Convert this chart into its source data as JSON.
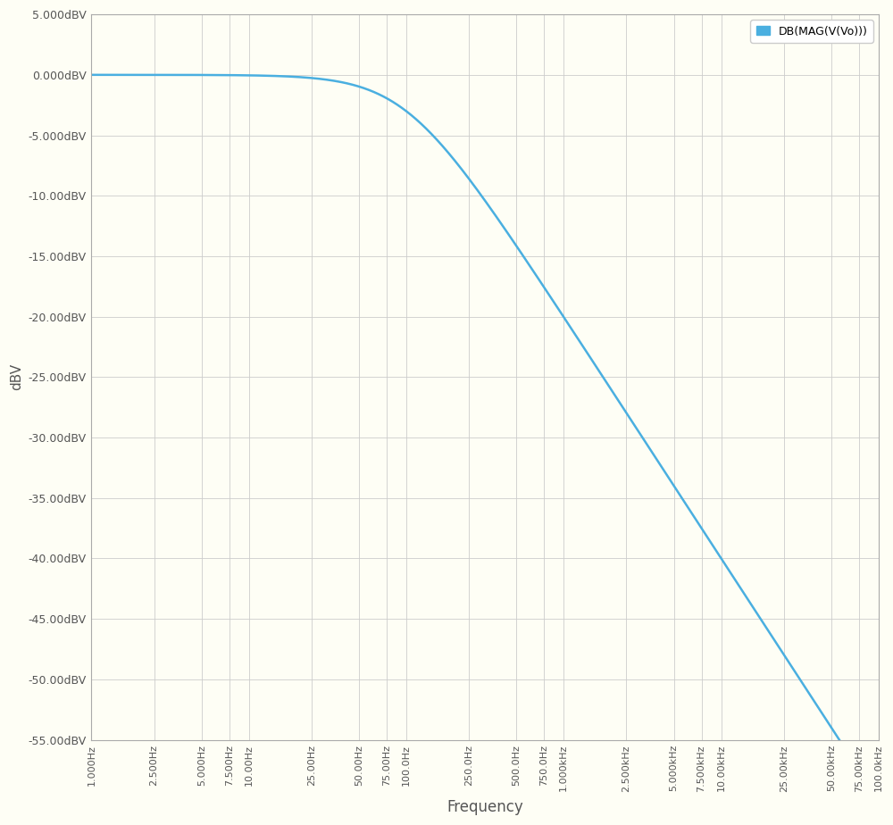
{
  "title": "",
  "xlabel": "Frequency",
  "ylabel": "dBV",
  "line_color": "#4AAFE0",
  "legend_label": "DB(MAG(V(Vo)))",
  "background_color": "#FEFEF5",
  "grid_color": "#CCCCCC",
  "ylim": [
    -55,
    5
  ],
  "yticks": [
    5,
    0,
    -5,
    -10,
    -15,
    -20,
    -25,
    -30,
    -35,
    -40,
    -45,
    -50,
    -55
  ],
  "ytick_labels": [
    "5.000dBV",
    "0.000dBV",
    "-5.000dBV",
    "-10.00dBV",
    "-15.00dBV",
    "-20.00dBV",
    "-25.00dBV",
    "-30.00dBV",
    "-35.00dBV",
    "-40.00dBV",
    "-45.00dBV",
    "-50.00dBV",
    "-55.00dBV"
  ],
  "f_start": 1.0,
  "f_end": 100000.0,
  "fc": 100.0,
  "line_width": 1.8,
  "xtick_positions": [
    1.0,
    2.5,
    5.0,
    7.5,
    10.0,
    25.0,
    50.0,
    75.0,
    100.0,
    250.0,
    500.0,
    750.0,
    1000.0,
    2500.0,
    5000.0,
    7500.0,
    10000.0,
    25000.0,
    50000.0,
    75000.0,
    100000.0
  ],
  "xtick_labels": [
    "1.000Hz",
    "2.500Hz",
    "5.000Hz",
    "7.500Hz",
    "10.00Hz",
    "25.00Hz",
    "50.00Hz",
    "75.00Hz",
    "100.0Hz",
    "250.0Hz",
    "500.0Hz",
    "750.0Hz",
    "1.000kHz",
    "2.500kHz",
    "5.000kHz",
    "7.500kHz",
    "10.00kHz",
    "25.00kHz",
    "50.00kHz",
    "75.00kHz",
    "100.0kHz"
  ],
  "spine_color": "#AAAAAA",
  "tick_color": "#555555",
  "legend_edge_color": "#CCCCCC",
  "legend_patch_color": "#4AAFE0"
}
